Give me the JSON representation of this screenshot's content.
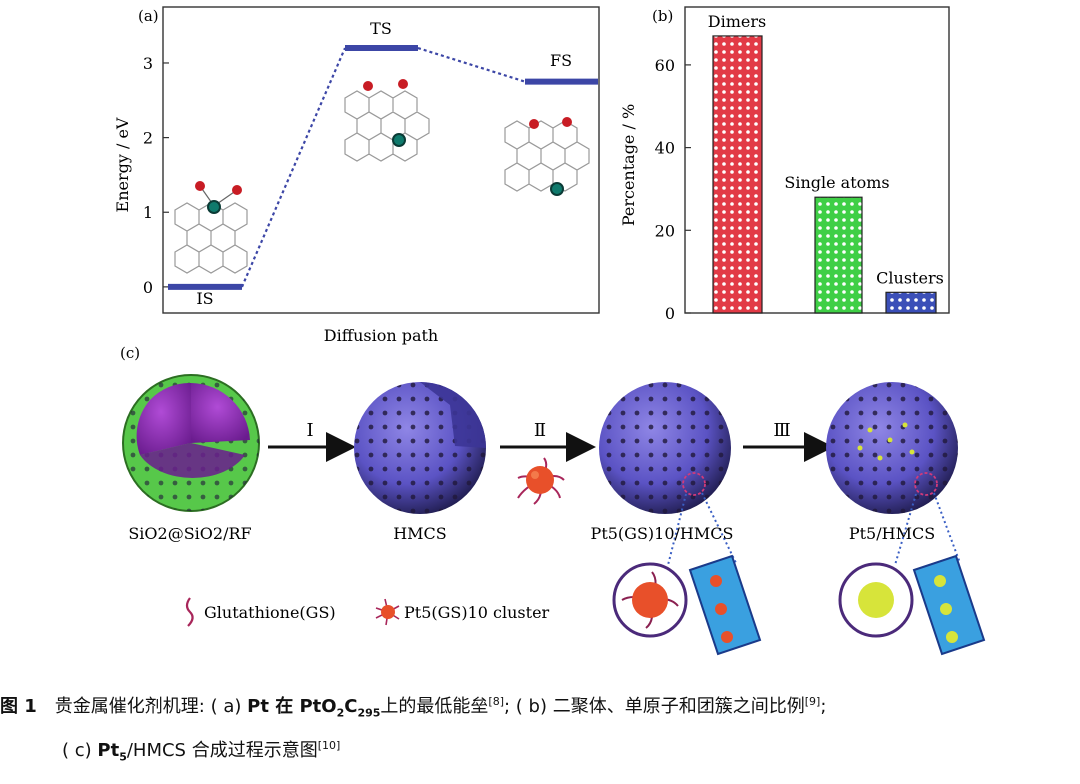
{
  "panel_a": {
    "label": "(a)",
    "ylabel": "Energy / eV",
    "xlabel": "Diffusion path",
    "ytick_labels": [
      "0",
      "1",
      "2",
      "3"
    ],
    "states": [
      "IS",
      "TS",
      "FS"
    ],
    "state_colors": {
      "level": "#3c46a6"
    }
  },
  "panel_b": {
    "label": "(b)",
    "ylabel": "Percentage / %",
    "ytick_labels": [
      "0",
      "20",
      "40",
      "60"
    ],
    "bar_labels": [
      "Dimers",
      "Single atoms",
      "Clusters"
    ],
    "bar_colors": [
      "#e23a46",
      "#3fcf46",
      "#3b4fb8"
    ]
  },
  "panel_c": {
    "label": "(c)",
    "steps": [
      "Ⅰ",
      "Ⅱ",
      "Ⅲ"
    ],
    "spheres": [
      "SiO2@SiO2/RF",
      "HMCS",
      "Pt5(GS)10/HMCS",
      "Pt5/HMCS"
    ],
    "legend": [
      "Glutathione(GS)",
      "Pt5(GS)10 cluster"
    ]
  },
  "chart_data": [
    {
      "type": "line",
      "title": "",
      "xlabel": "Diffusion path",
      "ylabel": "Energy / eV",
      "categories": [
        "IS",
        "TS",
        "FS"
      ],
      "values": [
        0,
        3.2,
        2.75
      ],
      "ylim": [
        -0.35,
        3.75
      ]
    },
    {
      "type": "bar",
      "title": "",
      "xlabel": "",
      "ylabel": "Percentage / %",
      "categories": [
        "Dimers",
        "Single atoms",
        "Clusters"
      ],
      "values": [
        67,
        28,
        5
      ],
      "ylim": [
        0,
        74
      ]
    }
  ],
  "caption": {
    "fig_no": "图 1",
    "l1_a": "贵金属催化剂机理: ( a)",
    "l1_b": "Pt 在 PtO",
    "l1_sub1": "2",
    "l1_c": "C",
    "l1_sub2": "295",
    "l1_d": "上的最低能垒",
    "l1_ref1": "[8]",
    "l1_e": "; ( b)",
    "l1_f": "二聚体、单原子和团簇之间比例",
    "l1_ref2": "[9]",
    "l1_g": ";",
    "l2_a": "( c)",
    "l2_b": "Pt",
    "l2_sub": "5",
    "l2_c": "/HMCS 合成过程示意图",
    "l2_ref": "[10]"
  }
}
